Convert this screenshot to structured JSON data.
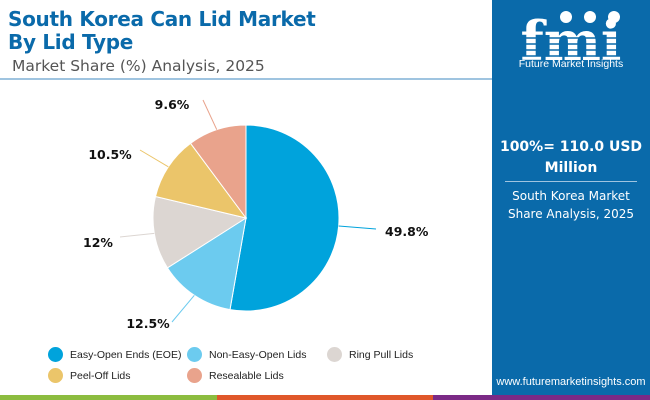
{
  "header": {
    "title_line1": "South Korea Can Lid Market",
    "title_line2": "By Lid Type",
    "subtitle": "Market Share (%) Analysis, 2025"
  },
  "panel": {
    "logo_letters": "fmi",
    "logo_text": "Future Market Insights",
    "total_line1": "100%= 110.0 USD",
    "total_line2": "Million",
    "desc_line1": "South Korea Market",
    "desc_line2": "Share Analysis, 2025",
    "url": "www.futuremarketinsights.com"
  },
  "colors": {
    "brand_blue": "#0a6aaa",
    "bar_green": "#8cbc3f",
    "bar_orange": "#e0572a",
    "bar_purple": "#7b2a86"
  },
  "chart_data": {
    "type": "pie",
    "title": "South Korea Can Lid Market By Lid Type",
    "subtitle": "Market Share (%) Analysis, 2025",
    "start_angle": "12 o'clock",
    "direction": "clockwise",
    "legend_position": "bottom",
    "slices": [
      {
        "name": "Easy-Open Ends (EOE)",
        "value": 49.8,
        "label": "49.8%",
        "color": "#00a3dc"
      },
      {
        "name": "Non-Easy-Open Lids",
        "value": 12.5,
        "label": "12.5%",
        "color": "#6ccbef"
      },
      {
        "name": "Ring Pull Lids",
        "value": 12,
        "label": "12%",
        "color": "#dcd6d2"
      },
      {
        "name": "Peel-Off Lids",
        "value": 10.5,
        "label": "10.5%",
        "color": "#ebc56a"
      },
      {
        "name": "Resealable Lids",
        "value": 9.6,
        "label": "9.6%",
        "color": "#e9a38c"
      }
    ]
  }
}
